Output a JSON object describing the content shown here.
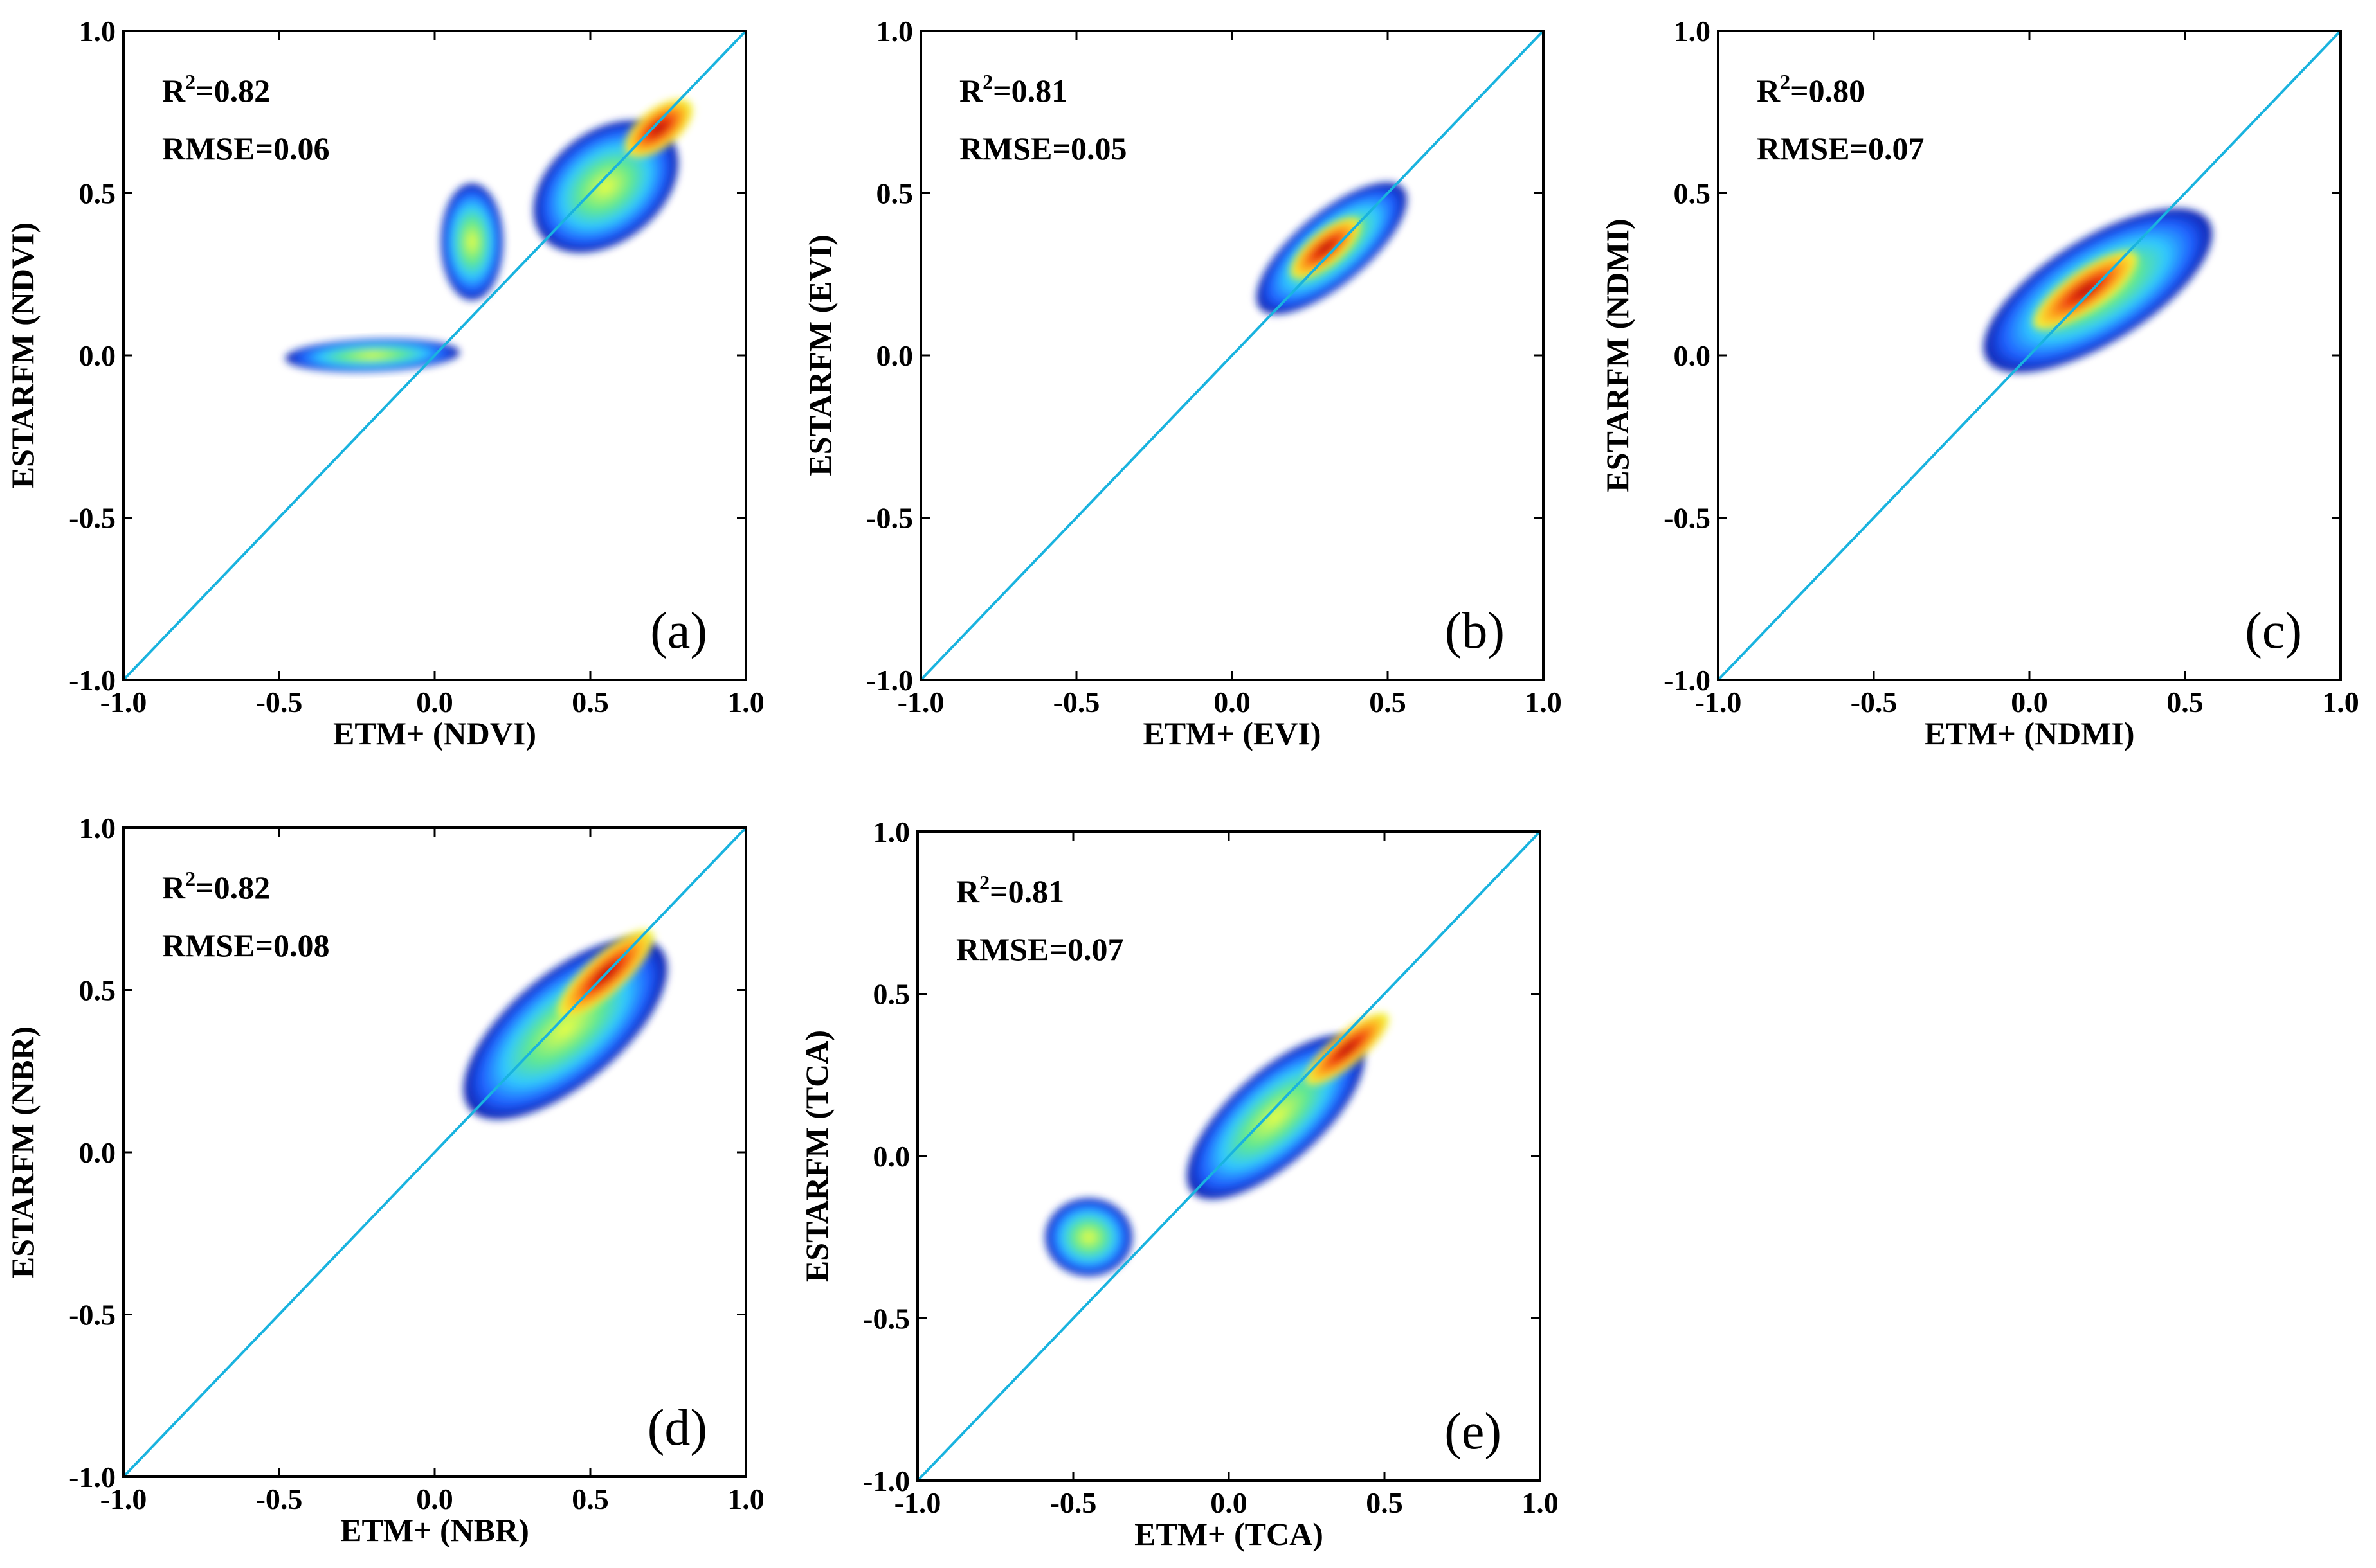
{
  "figure": {
    "title": "",
    "color_scale": [
      "#0a1aa8",
      "#2060ff",
      "#30c8ff",
      "#60e890",
      "#f0ff40",
      "#ffb020",
      "#f04010",
      "#b00000"
    ]
  },
  "chart_data": [
    {
      "type": "scatter",
      "id": "a",
      "panel_label": "(a)",
      "xlabel": "ETM+ (NDVI)",
      "ylabel": "ESTARFM (NDVI)",
      "xlim": [
        -1.0,
        1.0
      ],
      "ylim": [
        -1.0,
        1.0
      ],
      "xticks": [
        "-1.0",
        "-0.5",
        "0.0",
        "0.5",
        "1.0"
      ],
      "yticks": [
        "-1.0",
        "-0.5",
        "0.0",
        "0.5",
        "1.0"
      ],
      "r2_prefix": "R",
      "r2_sup": "2",
      "r2_value": "=0.82",
      "rmse": "RMSE=0.06",
      "reference_line": "1:1",
      "density_clusters": [
        {
          "cx": 0.55,
          "cy": 0.52,
          "sx": 0.26,
          "sy": 0.17,
          "angle_deg": 38
        },
        {
          "cx": -0.2,
          "cy": 0.0,
          "sx": 0.28,
          "sy": 0.05,
          "angle_deg": 2
        },
        {
          "cx": 0.12,
          "cy": 0.35,
          "sx": 0.1,
          "sy": 0.18,
          "angle_deg": 0
        }
      ],
      "core": {
        "cx": 0.72,
        "cy": 0.7,
        "sx": 0.13,
        "sy": 0.06,
        "angle_deg": 38
      }
    },
    {
      "type": "scatter",
      "id": "b",
      "panel_label": "(b)",
      "xlabel": "ETM+ (EVI)",
      "ylabel": "ESTARFM (EVI)",
      "xlim": [
        -1.0,
        1.0
      ],
      "ylim": [
        -1.0,
        1.0
      ],
      "xticks": [
        "-1.0",
        "-0.5",
        "0.0",
        "0.5",
        "1.0"
      ],
      "yticks": [
        "-1.0",
        "-0.5",
        "0.0",
        "0.5",
        "1.0"
      ],
      "r2_prefix": "R",
      "r2_sup": "2",
      "r2_value": "=0.81",
      "rmse": "RMSE=0.05",
      "reference_line": "1:1",
      "density_clusters": [
        {
          "cx": 0.32,
          "cy": 0.33,
          "sx": 0.3,
          "sy": 0.11,
          "angle_deg": 40
        }
      ],
      "core": {
        "cx": 0.3,
        "cy": 0.33,
        "sx": 0.14,
        "sy": 0.05,
        "angle_deg": 40
      }
    },
    {
      "type": "scatter",
      "id": "c",
      "panel_label": "(c)",
      "xlabel": "ETM+ (NDMI)",
      "ylabel": "ESTARFM (NDMI)",
      "xlim": [
        -1.0,
        1.0
      ],
      "ylim": [
        -1.0,
        1.0
      ],
      "xticks": [
        "-1.0",
        "-0.5",
        "0.0",
        "0.5",
        "1.0"
      ],
      "yticks": [
        "-1.0",
        "-0.5",
        "0.0",
        "0.5",
        "1.0"
      ],
      "r2_prefix": "R",
      "r2_sup": "2",
      "r2_value": "=0.80",
      "rmse": "RMSE=0.07",
      "reference_line": "1:1",
      "density_clusters": [
        {
          "cx": 0.22,
          "cy": 0.2,
          "sx": 0.42,
          "sy": 0.16,
          "angle_deg": 32
        }
      ],
      "core": {
        "cx": 0.18,
        "cy": 0.2,
        "sx": 0.2,
        "sy": 0.06,
        "angle_deg": 35
      }
    },
    {
      "type": "scatter",
      "id": "d",
      "panel_label": "(d)",
      "xlabel": "ETM+ (NBR)",
      "ylabel": "ESTARFM (NBR)",
      "xlim": [
        -1.0,
        1.0
      ],
      "ylim": [
        -1.0,
        1.0
      ],
      "xticks": [
        "-1.0",
        "-0.5",
        "0.0",
        "0.5",
        "1.0"
      ],
      "yticks": [
        "-1.0",
        "-0.5",
        "0.0",
        "0.5",
        "1.0"
      ],
      "r2_prefix": "R",
      "r2_sup": "2",
      "r2_value": "=0.82",
      "rmse": "RMSE=0.08",
      "reference_line": "1:1",
      "density_clusters": [
        {
          "cx": 0.42,
          "cy": 0.38,
          "sx": 0.4,
          "sy": 0.17,
          "angle_deg": 40
        }
      ],
      "core": {
        "cx": 0.55,
        "cy": 0.55,
        "sx": 0.2,
        "sy": 0.06,
        "angle_deg": 42
      }
    },
    {
      "type": "scatter",
      "id": "e",
      "panel_label": "(e)",
      "xlabel": "ETM+ (TCA)",
      "ylabel": "ESTARFM (TCA)",
      "xlim": [
        -1.0,
        1.0
      ],
      "ylim": [
        -1.0,
        1.0
      ],
      "xticks": [
        "-1.0",
        "-0.5",
        "0.0",
        "0.5",
        "1.0"
      ],
      "yticks": [
        "-1.0",
        "-0.5",
        "0.0",
        "0.5",
        "1.0"
      ],
      "r2_prefix": "R",
      "r2_sup": "2",
      "r2_value": "=0.81",
      "rmse": "RMSE=0.07",
      "reference_line": "1:1",
      "density_clusters": [
        {
          "cx": 0.15,
          "cy": 0.12,
          "sx": 0.36,
          "sy": 0.14,
          "angle_deg": 42
        },
        {
          "cx": -0.45,
          "cy": -0.25,
          "sx": 0.14,
          "sy": 0.12,
          "angle_deg": 0
        }
      ],
      "core": {
        "cx": 0.38,
        "cy": 0.33,
        "sx": 0.17,
        "sy": 0.05,
        "angle_deg": 40
      }
    }
  ]
}
